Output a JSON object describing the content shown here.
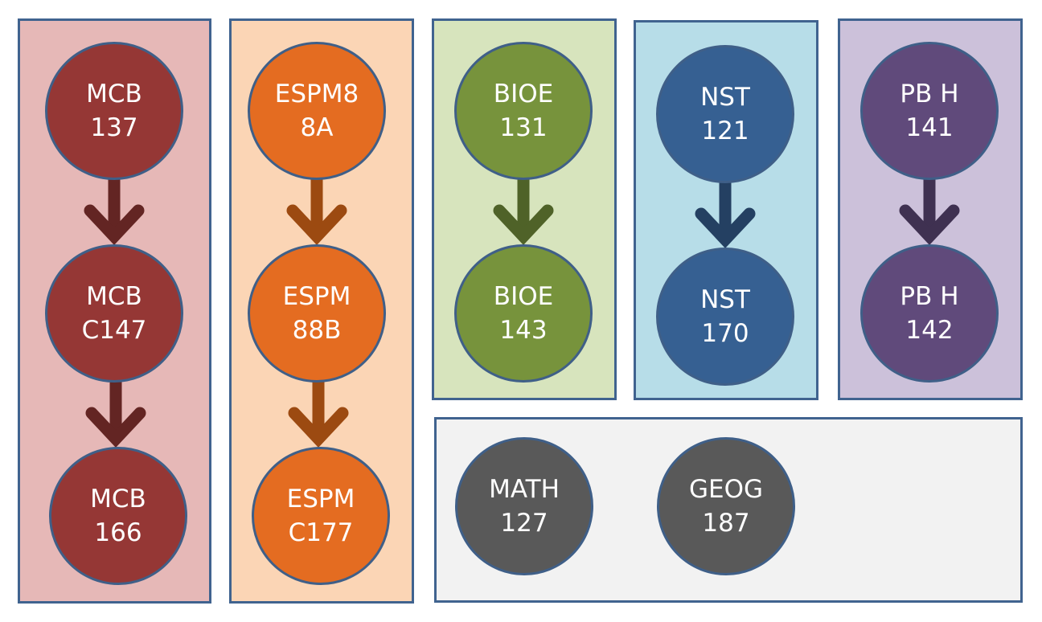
{
  "colors": {
    "mcb": {
      "panel": "#e6b8b7",
      "node": "#953735",
      "arrow": "#632523"
    },
    "espm": {
      "panel": "#fbd5b5",
      "node": "#e46c21",
      "arrow": "#9c4a11"
    },
    "bioe": {
      "panel": "#d7e4bd",
      "node": "#77933c",
      "arrow": "#4f6228"
    },
    "nst": {
      "panel": "#b7dde8",
      "node": "#366092",
      "arrow": "#244062"
    },
    "pbh": {
      "panel": "#ccc1da",
      "node": "#604a7b",
      "arrow": "#3f3151"
    },
    "other": {
      "panel": "#f2f2f2",
      "node": "#595959"
    },
    "border": "#40638f"
  },
  "columns": [
    {
      "key": "mcb",
      "nodes": [
        {
          "line1": "MCB",
          "line2": "137"
        },
        {
          "line1": "MCB",
          "line2": "C147"
        },
        {
          "line1": "MCB",
          "line2": "166"
        }
      ]
    },
    {
      "key": "espm",
      "nodes": [
        {
          "line1": "ESPM8",
          "line2": "8A"
        },
        {
          "line1": "ESPM",
          "line2": "88B"
        },
        {
          "line1": "ESPM",
          "line2": "C177"
        }
      ]
    },
    {
      "key": "bioe",
      "nodes": [
        {
          "line1": "BIOE",
          "line2": "131"
        },
        {
          "line1": "BIOE",
          "line2": "143"
        }
      ]
    },
    {
      "key": "nst",
      "nodes": [
        {
          "line1": "NST",
          "line2": "121"
        },
        {
          "line1": "NST",
          "line2": "170"
        }
      ]
    },
    {
      "key": "pbh",
      "nodes": [
        {
          "line1": "PB H",
          "line2": "141"
        },
        {
          "line1": "PB H",
          "line2": "142"
        }
      ]
    }
  ],
  "standalone": [
    {
      "line1": "MATH",
      "line2": "127"
    },
    {
      "line1": "GEOG",
      "line2": "187"
    }
  ]
}
